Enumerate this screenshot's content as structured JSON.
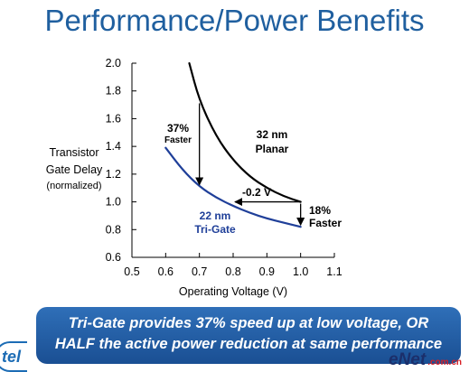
{
  "slide": {
    "title": "Performance/Power Benefits",
    "ylabel_lines": [
      "Transistor",
      "Gate Delay",
      "(normalized)"
    ],
    "banner_lines": [
      "Tri-Gate provides 37% speed up at low voltage, OR",
      "HALF the active power reduction at same performance"
    ],
    "logo_text": "tel",
    "watermark": {
      "main": "eNet",
      "domain": ".com.cn"
    }
  },
  "colors": {
    "title": "#1f5f9f",
    "planar": "#000000",
    "trigate": "#1f3f99",
    "banner": "#2266b0"
  },
  "chart_data": {
    "type": "line",
    "xlabel": "Operating Voltage (V)",
    "ylabel": "Transistor Gate Delay (normalized)",
    "xlim": [
      0.5,
      1.1
    ],
    "ylim": [
      0.6,
      2.0
    ],
    "xticks": [
      "0.5",
      "0.6",
      "0.7",
      "0.8",
      "0.9",
      "1.0",
      "1.1"
    ],
    "yticks": [
      "0.6",
      "0.8",
      "1.0",
      "1.2",
      "1.4",
      "1.6",
      "1.8",
      "2.0"
    ],
    "grid": false,
    "series": [
      {
        "name": "32 nm Planar",
        "label_lines": [
          "32 nm",
          "Planar"
        ],
        "color": "#000000",
        "x": [
          0.67,
          0.7,
          0.75,
          0.8,
          0.85,
          0.9,
          0.95,
          1.0
        ],
        "y": [
          2.0,
          1.73,
          1.47,
          1.3,
          1.18,
          1.1,
          1.04,
          1.0
        ]
      },
      {
        "name": "22 nm Tri-Gate",
        "label_lines": [
          "22 nm",
          "Tri-Gate"
        ],
        "color": "#1f3f99",
        "x": [
          0.6,
          0.65,
          0.7,
          0.75,
          0.8,
          0.85,
          0.9,
          0.95,
          1.0
        ],
        "y": [
          1.39,
          1.23,
          1.11,
          1.03,
          0.97,
          0.92,
          0.88,
          0.85,
          0.82
        ]
      }
    ],
    "annotations": [
      {
        "text_lines": [
          "37%",
          "Faster"
        ],
        "from": [
          0.7,
          1.73
        ],
        "to": [
          0.7,
          1.11
        ]
      },
      {
        "text_lines": [
          "-0.2 V"
        ],
        "from": [
          1.0,
          1.0
        ],
        "to": [
          0.8,
          1.0
        ]
      },
      {
        "text_lines": [
          "18%",
          "Faster"
        ],
        "from": [
          1.0,
          1.0
        ],
        "to": [
          1.0,
          0.82
        ]
      }
    ]
  }
}
